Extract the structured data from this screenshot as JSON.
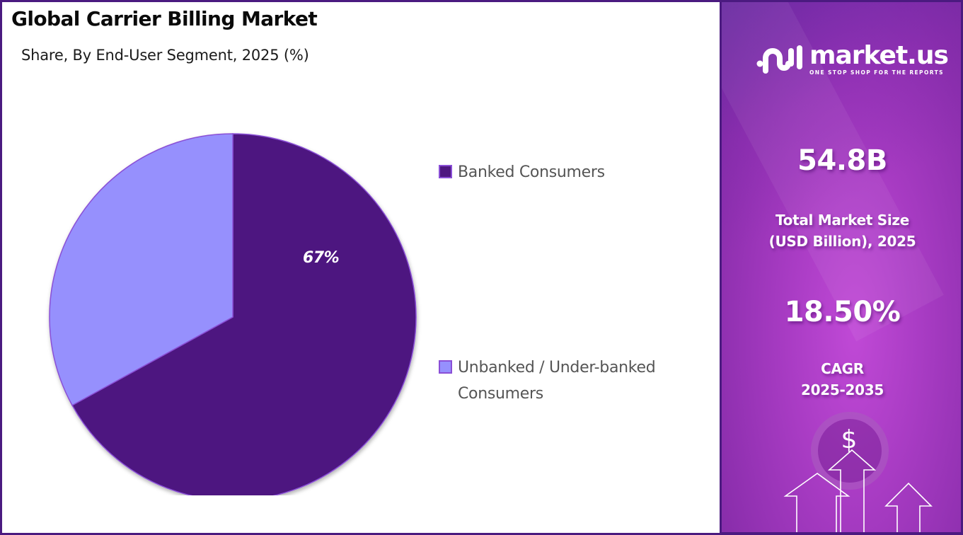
{
  "header": {
    "title": "Global Carrier Billing Market",
    "subtitle": "Share, By End-User Segment, 2025 (%)"
  },
  "chart_data": {
    "type": "pie",
    "title": "Global Carrier Billing Market",
    "subtitle": "Share, By End-User Segment, 2025 (%)",
    "categories": [
      "Banked Consumers",
      "Unbanked / Under-banked Consumers"
    ],
    "values": [
      67,
      33
    ],
    "colors": [
      "#4e1780",
      "#9690fd"
    ],
    "data_labels": [
      "67%",
      ""
    ],
    "legend_position": "right",
    "start_angle_deg": 0,
    "direction": "clockwise"
  },
  "pie": {
    "label": "67%",
    "slice_stroke": "#8a4fd6"
  },
  "legend": {
    "items": [
      {
        "label_line1": "Banked Consumers",
        "label_line2": "",
        "color": "#4e1780"
      },
      {
        "label_line1": "Unbanked / Under-banked",
        "label_line2": "Consumers",
        "color": "#9690fd"
      }
    ]
  },
  "sidebar": {
    "brand": {
      "name": "market.us",
      "tagline": "ONE STOP SHOP FOR THE REPORTS"
    },
    "market_size": {
      "value": "54.8B",
      "label_line1": "Total Market Size",
      "label_line2": "(USD Billion), 2025"
    },
    "cagr": {
      "value": "18.50%",
      "label_line1": "CAGR",
      "label_line2": "2025-2035"
    },
    "decor_icon": "dollar-growth-arrows-icon",
    "dollar_symbol": "$"
  },
  "colors": {
    "frame": "#4b1a80",
    "banked": "#4e1780",
    "unbanked": "#9690fd",
    "sidebar_purple": "#a43cc2"
  }
}
